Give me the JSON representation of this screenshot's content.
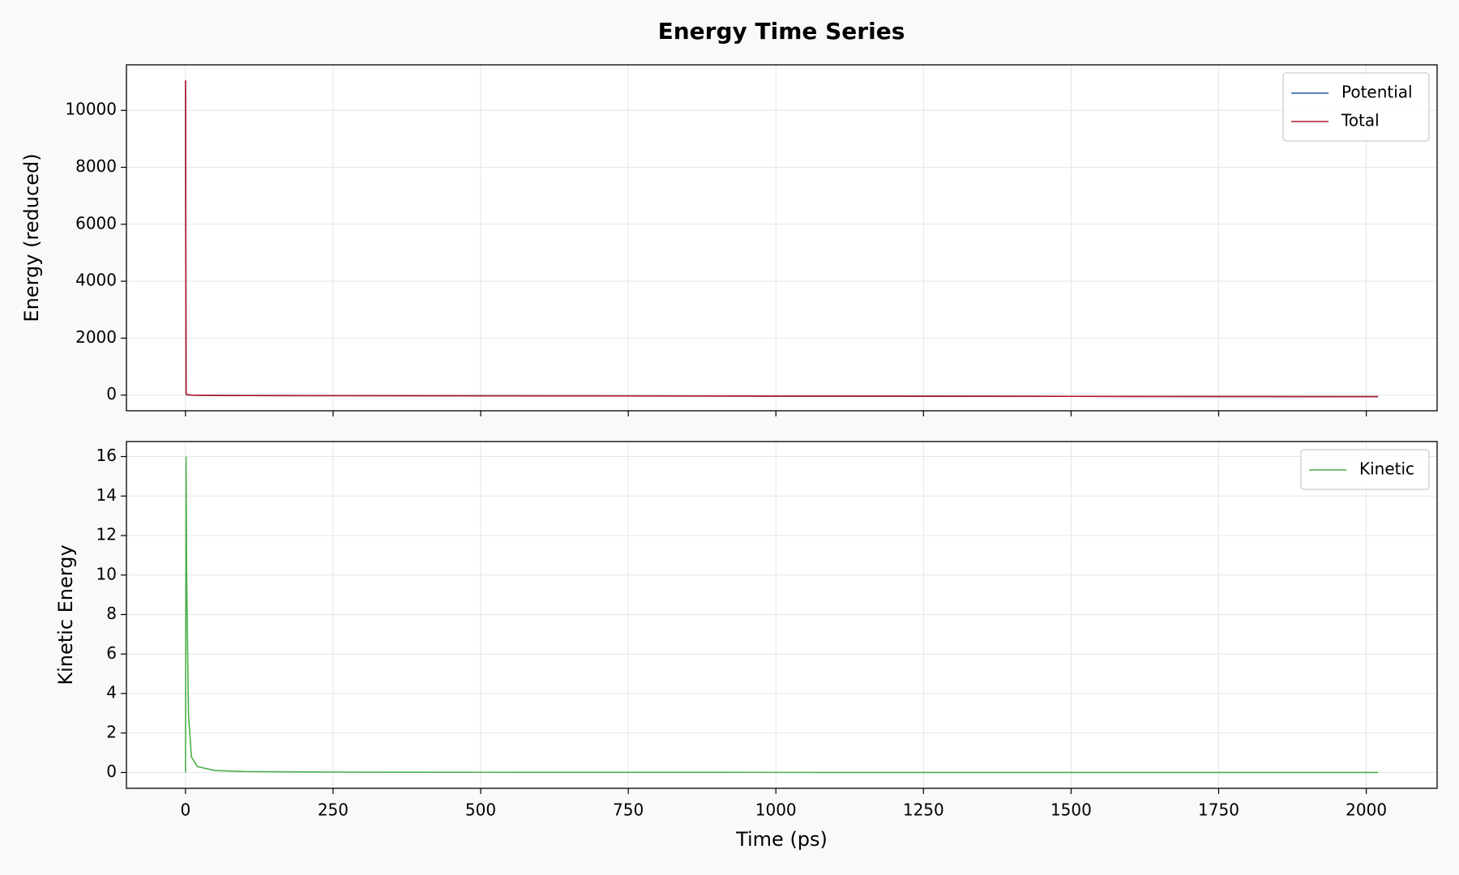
{
  "title": "Energy Time Series",
  "chart_data": [
    {
      "type": "line",
      "ylabel": "Energy (reduced)",
      "x": [
        0,
        1,
        2,
        5,
        10,
        20,
        50,
        100,
        250,
        500,
        1000,
        1500,
        2020
      ],
      "series": [
        {
          "name": "Potential",
          "color": "#1f5f99",
          "values": [
            11050,
            44,
            10,
            7,
            -1,
            -5,
            -10,
            -15,
            -20,
            -25,
            -35,
            -45,
            -55
          ]
        },
        {
          "name": "Total",
          "color": "#b2182b",
          "values": [
            11050,
            60,
            20,
            10,
            0,
            -5,
            -10,
            -15,
            -20,
            -25,
            -35,
            -45,
            -55
          ]
        }
      ],
      "xlim": [
        -100,
        2120
      ],
      "xticks": [
        0,
        250,
        500,
        750,
        1000,
        1250,
        1500,
        1750,
        2000
      ],
      "ylim": [
        -550,
        11600
      ],
      "yticks": [
        0,
        2000,
        4000,
        6000,
        8000,
        10000
      ],
      "grid": true,
      "legend": "upper right"
    },
    {
      "type": "line",
      "xlabel": "Time (ps)",
      "ylabel": "Kinetic Energy",
      "x": [
        0,
        1,
        2,
        5,
        10,
        20,
        50,
        100,
        250,
        500,
        1000,
        1500,
        2020
      ],
      "series": [
        {
          "name": "Kinetic",
          "color": "#4daf4a",
          "values": [
            0,
            16,
            10,
            3,
            0.8,
            0.3,
            0.1,
            0.05,
            0.02,
            0.01,
            0.005,
            0.003,
            0.002
          ]
        }
      ],
      "xlim": [
        -100,
        2120
      ],
      "xticks": [
        0,
        250,
        500,
        750,
        1000,
        1250,
        1500,
        1750,
        2000
      ],
      "ylim": [
        -0.8,
        16.76
      ],
      "yticks": [
        0,
        2,
        4,
        6,
        8,
        10,
        12,
        14,
        16
      ],
      "grid": true,
      "legend": "upper right"
    }
  ]
}
